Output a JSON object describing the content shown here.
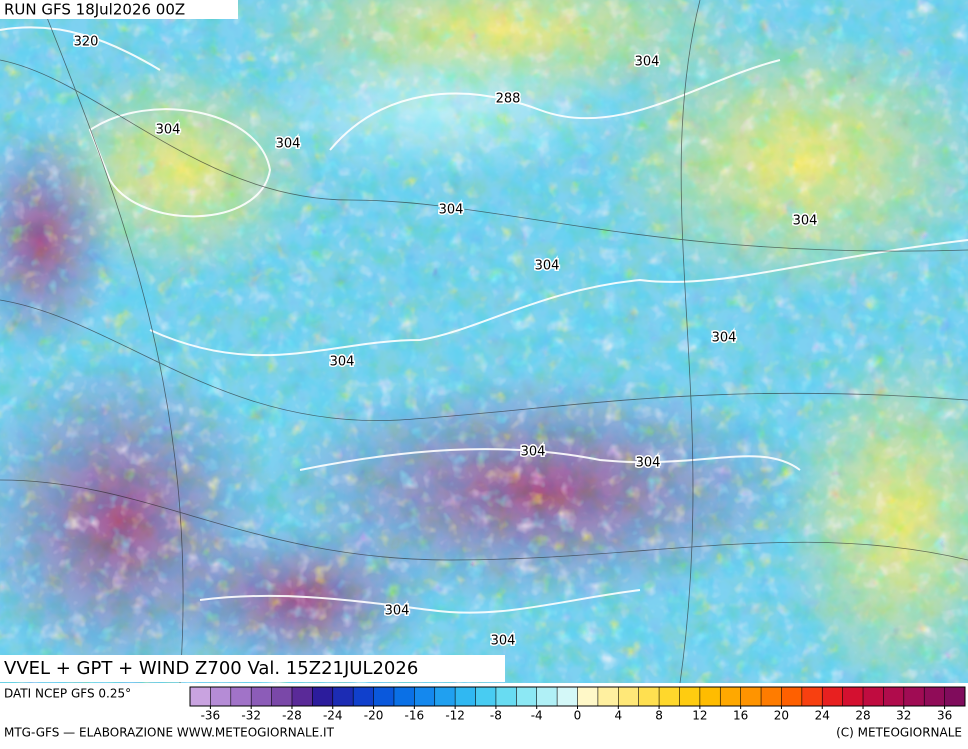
{
  "header": {
    "run": "RUN GFS 18Jul2026 00Z"
  },
  "contour_labels": [
    "320",
    "304",
    "288",
    "304",
    "304",
    "304",
    "304",
    "304",
    "304",
    "304",
    "304",
    "304",
    "304",
    "304"
  ],
  "footer": {
    "title": "VVEL + GPT + WIND Z700 Val. 15Z21JUL2026",
    "source": "DATI NCEP GFS 0.25°",
    "credit_left": "MTG-GFS — ELABORAZIONE WWW.METEOGIORNALE.IT",
    "credit_right": "(C) METEOGIORNALE"
  },
  "colorbar": {
    "clim": [
      -38,
      38
    ],
    "ticks": [
      -36,
      -32,
      -28,
      -24,
      -20,
      -16,
      -12,
      -8,
      -4,
      0,
      4,
      8,
      12,
      16,
      20,
      24,
      28,
      32,
      36
    ],
    "colors": [
      "#c9a3e0",
      "#b58cd6",
      "#a173c8",
      "#8c5cb8",
      "#7a48a8",
      "#5a2a98",
      "#2c1c9c",
      "#1c2cb4",
      "#1040cc",
      "#0a58dc",
      "#0a70e6",
      "#1488ee",
      "#20a0f0",
      "#30b8f2",
      "#48ccf2",
      "#68dcf2",
      "#8ce8f4",
      "#b0f0f6",
      "#d4f8f8",
      "#fff8c8",
      "#fff0a0",
      "#ffe878",
      "#ffe050",
      "#ffd82c",
      "#ffcc10",
      "#ffbc00",
      "#ffa800",
      "#ff9400",
      "#ff7c00",
      "#ff6000",
      "#f84010",
      "#e82020",
      "#d41030",
      "#c00c40",
      "#b00c4c",
      "#a00c54",
      "#900c58",
      "#800c5c"
    ]
  }
}
